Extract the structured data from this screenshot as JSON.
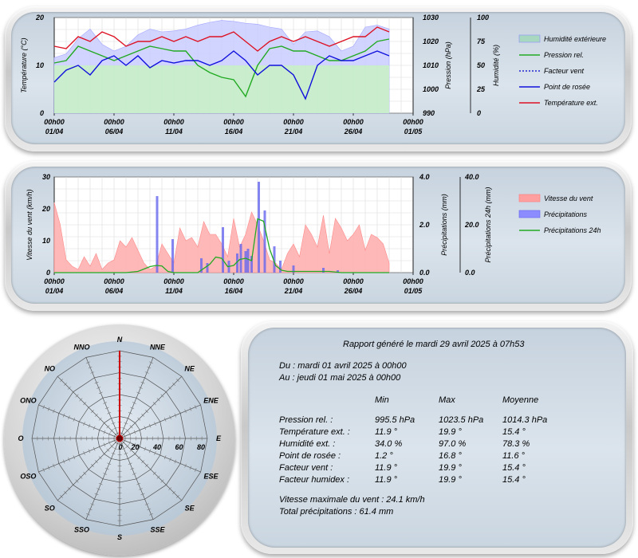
{
  "chart_data": [
    {
      "type": "line",
      "title": "",
      "x_range": [
        "2025-04-01 00:00",
        "2025-05-01 00:00"
      ],
      "x_ticks": [
        "00h00 01/04",
        "00h00 06/04",
        "00h00 11/04",
        "00h00 16/04",
        "00h00 21/04",
        "00h00 26/04",
        "00h00 01/05"
      ],
      "axes": {
        "temperature": {
          "label": "Température (°C)",
          "range": [
            0,
            20
          ],
          "ticks": [
            "0",
            "10",
            "20"
          ]
        },
        "pressure": {
          "label": "Pression (hPa)",
          "range": [
            990,
            1030
          ],
          "ticks": [
            "990",
            "1000",
            "1010",
            "1020",
            "1030"
          ]
        },
        "humidity": {
          "label": "Humidité (%)",
          "range": [
            0,
            100
          ],
          "ticks": [
            "0",
            "25",
            "50",
            "75",
            "100"
          ]
        }
      },
      "grid": true,
      "legend_position": "right",
      "series": [
        {
          "name": "Humidité extérieure",
          "axis": "humidity",
          "kind": "area",
          "color": "#8c8cff",
          "x_days": [
            0,
            1,
            2,
            3,
            4,
            5,
            6,
            7,
            8,
            9,
            10,
            11,
            12,
            13,
            14,
            15,
            16,
            17,
            18,
            19,
            20,
            21,
            22,
            23,
            24,
            25,
            26,
            27,
            28
          ],
          "values": [
            58,
            62,
            78,
            88,
            72,
            65,
            70,
            82,
            88,
            85,
            86,
            88,
            92,
            95,
            97,
            96,
            94,
            93,
            90,
            88,
            72,
            85,
            86,
            80,
            65,
            70,
            90,
            92,
            88
          ]
        },
        {
          "name": "Pression rel.",
          "axis": "pressure",
          "kind": "line",
          "color": "#22aa22",
          "x_days": [
            0,
            1,
            2,
            3,
            4,
            5,
            6,
            7,
            8,
            9,
            10,
            11,
            12,
            13,
            14,
            15,
            16,
            17,
            18,
            19,
            20,
            21,
            22,
            23,
            24,
            25,
            26,
            27,
            28
          ],
          "values": [
            1011,
            1012,
            1018,
            1016,
            1014,
            1012,
            1014,
            1016,
            1018,
            1017,
            1016,
            1016,
            1010,
            1007,
            1005,
            1004,
            997,
            1010,
            1017,
            1018,
            1016,
            1016,
            1014,
            1012,
            1012,
            1014,
            1016,
            1020,
            1021
          ]
        },
        {
          "name": "Facteur vent",
          "axis": "temperature",
          "kind": "dotted",
          "color": "#0000cc",
          "x_days": [],
          "values": []
        },
        {
          "name": "Point de rosée",
          "axis": "temperature",
          "kind": "line",
          "color": "#1111dd",
          "x_days": [
            0,
            1,
            2,
            3,
            4,
            5,
            6,
            7,
            8,
            9,
            10,
            11,
            12,
            13,
            14,
            15,
            16,
            17,
            18,
            19,
            20,
            21,
            22,
            23,
            24,
            25,
            26,
            27,
            28
          ],
          "values": [
            6.5,
            9,
            10,
            8,
            11,
            12,
            10,
            12,
            9.5,
            11,
            10.5,
            11,
            11,
            10,
            11,
            13,
            11,
            8,
            10,
            10,
            8,
            3,
            10,
            12,
            11,
            11,
            12,
            13,
            12
          ]
        },
        {
          "name": "Température ext.",
          "axis": "temperature",
          "kind": "line",
          "color": "#dd1122",
          "x_days": [
            0,
            1,
            2,
            3,
            4,
            5,
            6,
            7,
            8,
            9,
            10,
            11,
            12,
            13,
            14,
            15,
            16,
            17,
            18,
            19,
            20,
            21,
            22,
            23,
            24,
            25,
            26,
            27,
            28
          ],
          "values": [
            14,
            13.5,
            16,
            15,
            17,
            16,
            14,
            15,
            15,
            16,
            15,
            16,
            15,
            16,
            16,
            17,
            15,
            13,
            15,
            16,
            15,
            16,
            15,
            14,
            15,
            16,
            16,
            18,
            17
          ]
        }
      ]
    },
    {
      "type": "bar",
      "title": "",
      "x_range": [
        "2025-04-01 00:00",
        "2025-05-01 00:00"
      ],
      "x_ticks": [
        "00h00 01/04",
        "00h00 06/04",
        "00h00 11/04",
        "00h00 16/04",
        "00h00 21/04",
        "00h00 26/04",
        "00h00 01/05"
      ],
      "axes": {
        "wind": {
          "label": "Vitesse du vent (km/h)",
          "range": [
            0,
            30
          ],
          "ticks": [
            "0",
            "10",
            "20",
            "30"
          ]
        },
        "rain": {
          "label": "Précipitations (mm)",
          "range": [
            0,
            4.0
          ],
          "ticks": [
            "0.0",
            "2.0",
            "4.0"
          ]
        },
        "rain24": {
          "label": "Précipitations 24h (mm)",
          "range": [
            0,
            40.0
          ],
          "ticks": [
            "0.0",
            "20.0",
            "40.0"
          ]
        }
      },
      "grid": true,
      "legend_position": "right",
      "series": [
        {
          "name": "Vitesse du vent",
          "axis": "wind",
          "kind": "area",
          "color": "#ff7777",
          "x_days": [
            0,
            0.5,
            1,
            1.5,
            2,
            2.5,
            3,
            3.5,
            4,
            4.5,
            5,
            5.5,
            6,
            6.5,
            7,
            7.5,
            8,
            8.5,
            9,
            9.5,
            10,
            10.5,
            11,
            11.5,
            12,
            12.5,
            13,
            13.5,
            14,
            14.5,
            15,
            15.5,
            16,
            16.5,
            17,
            17.5,
            18,
            18.5,
            19,
            19.5,
            20,
            20.5,
            21,
            21.5,
            22,
            22.5,
            23,
            23.5,
            24,
            24.5,
            25,
            25.5,
            26,
            26.5,
            27,
            27.5,
            28
          ],
          "values": [
            22,
            15,
            4,
            2,
            1,
            5,
            2,
            6,
            1,
            3,
            4,
            10,
            8,
            11,
            7,
            3,
            1,
            2,
            9,
            6,
            3,
            14,
            10,
            11,
            8,
            16,
            12,
            12,
            9,
            5,
            17,
            8,
            12,
            19,
            15,
            10,
            4,
            3,
            1,
            6,
            9,
            5,
            15,
            12,
            8,
            18,
            6,
            17,
            14,
            10,
            12,
            15,
            7,
            12,
            11,
            9,
            3
          ]
        },
        {
          "name": "Précipitations",
          "axis": "rain",
          "kind": "bar",
          "color": "#6666ee",
          "x_days": [
            8.6,
            9.9,
            12.3,
            12.8,
            14.1,
            14.6,
            15.3,
            15.6,
            16.0,
            16.2,
            16.5,
            17.1,
            17.6,
            18.4,
            18.9,
            20.0,
            22.5,
            23.7
          ],
          "values": [
            3.2,
            1.4,
            0.6,
            0.4,
            1.9,
            0.5,
            0.8,
            1.2,
            0.9,
            1.0,
            0.7,
            3.8,
            2.6,
            1.1,
            0.5,
            0.3,
            0.2,
            0.1
          ]
        },
        {
          "name": "Précipitations 24h",
          "axis": "rain24",
          "kind": "line",
          "color": "#22aa22",
          "x_days": [
            0,
            6,
            7,
            8,
            8.5,
            9,
            9.5,
            10,
            12,
            13,
            13.5,
            14,
            14.5,
            15,
            15.5,
            16,
            16.5,
            17,
            17.5,
            18,
            18.5,
            19,
            19.5,
            20,
            22,
            23,
            24,
            28
          ],
          "values": [
            0,
            0,
            0.5,
            2.5,
            3.0,
            2.8,
            0.5,
            0,
            0,
            3.5,
            6.5,
            6.0,
            2.5,
            3.0,
            5.5,
            6.0,
            5.0,
            22.5,
            21.5,
            10.0,
            3.0,
            1.0,
            0.5,
            0.5,
            0.5,
            0.5,
            0,
            0
          ]
        }
      ]
    },
    {
      "type": "radar",
      "title": "",
      "directions": [
        "N",
        "NNE",
        "NE",
        "ENE",
        "E",
        "ESE",
        "SE",
        "SSE",
        "S",
        "SSO",
        "SO",
        "OSO",
        "O",
        "ONO",
        "NO",
        "NNO"
      ],
      "radial_ticks": [
        "0",
        "20",
        "40",
        "60",
        "80"
      ],
      "radial_range": [
        0,
        80
      ],
      "series": [
        {
          "name": "",
          "color": "#cc0000",
          "values": [
            80,
            0,
            0,
            0,
            0,
            0,
            0,
            0,
            0,
            0,
            0,
            0,
            0,
            0,
            0,
            0
          ]
        }
      ]
    }
  ],
  "report": {
    "header": "Rapport généré le mardi 29 avril 2025 à 07h53",
    "from": "Du : mardi 01 avril 2025 à 00h00",
    "to": "Au : jeudi 01 mai 2025 à 00h00",
    "columns": [
      "Min",
      "Max",
      "Moyenne"
    ],
    "rows": [
      {
        "label": "Pression rel. :",
        "min": "995.5 hPa",
        "max": "1023.5 hPa",
        "avg": "1014.3 hPa"
      },
      {
        "label": "Température ext. :",
        "min": "11.9 °",
        "max": "19.9 °",
        "avg": "15.4 °"
      },
      {
        "label": "Humidité ext. :",
        "min": "34.0 %",
        "max": "97.0 %",
        "avg": "78.3 %"
      },
      {
        "label": "Point de rosée :",
        "min": "1.2 °",
        "max": "16.8 °",
        "avg": "11.6 °"
      },
      {
        "label": "Facteur vent :",
        "min": "11.9 °",
        "max": "19.9 °",
        "avg": "15.4 °"
      },
      {
        "label": "Facteur humidex :",
        "min": "11.9 °",
        "max": "19.9 °",
        "avg": "15.4 °"
      }
    ],
    "max_wind": "Vitesse maximale du vent : 24.1 km/h",
    "total_rain": "Total précipitations : 61.4 mm"
  }
}
